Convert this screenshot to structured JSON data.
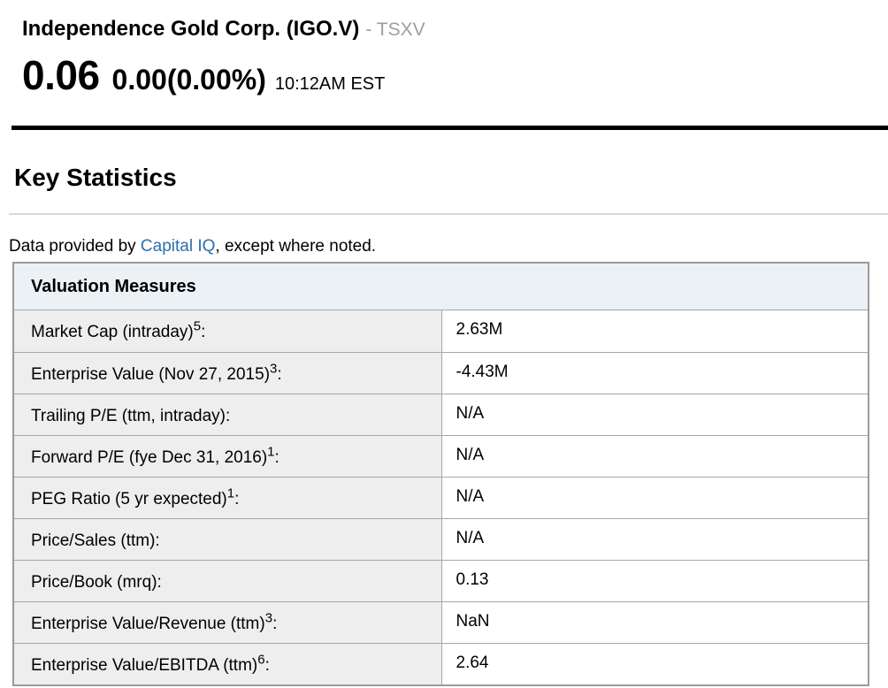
{
  "quote": {
    "company": "Independence Gold Corp. (IGO.V)",
    "exchange": "- TSXV",
    "price": "0.06",
    "change": "0.00(0.00%)",
    "time": "10:12AM EST"
  },
  "page": {
    "title": "Key Statistics"
  },
  "provider": {
    "prefix": "Data provided by ",
    "link": "Capital IQ",
    "suffix": ", except where noted."
  },
  "table": {
    "header": "Valuation Measures",
    "label_suffix": ":",
    "rows": [
      {
        "label": "Market Cap (intraday)",
        "sup": "5",
        "value": "2.63M"
      },
      {
        "label": "Enterprise Value (Nov 27, 2015)",
        "sup": "3",
        "value": "-4.43M"
      },
      {
        "label": "Trailing P/E (ttm, intraday)",
        "sup": "",
        "value": "N/A"
      },
      {
        "label": "Forward P/E (fye Dec 31, 2016)",
        "sup": "1",
        "value": "N/A"
      },
      {
        "label": "PEG Ratio (5 yr expected)",
        "sup": "1",
        "value": "N/A"
      },
      {
        "label": "Price/Sales (ttm)",
        "sup": "",
        "value": "N/A"
      },
      {
        "label": "Price/Book (mrq)",
        "sup": "",
        "value": "0.13"
      },
      {
        "label": "Enterprise Value/Revenue (ttm)",
        "sup": "3",
        "value": "NaN"
      },
      {
        "label": "Enterprise Value/EBITDA (ttm)",
        "sup": "6",
        "value": "2.64"
      }
    ]
  },
  "colors": {
    "link": "#2c6fad",
    "header-bg": "#ecf1f5",
    "label-bg": "#eeeeee",
    "border-inner": "#a6a6a6",
    "border-outer": "#9b9b9b",
    "rule-black": "#000000",
    "rule-gray": "#d8d8d8",
    "exchange-gray": "#9e9e9e"
  }
}
